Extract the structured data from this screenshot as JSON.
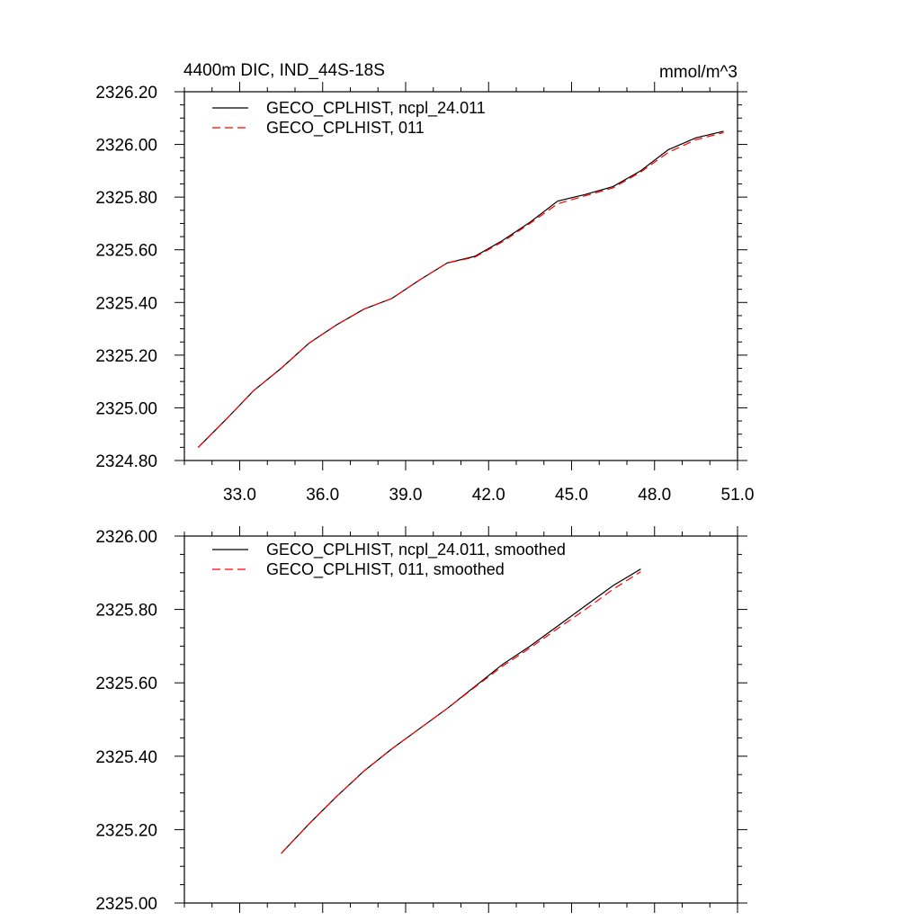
{
  "chart_data": [
    {
      "type": "line",
      "title_left": "4400m DIC, IND_44S-18S",
      "title_right": "mmol/m^3",
      "xlim": [
        31.0,
        51.0
      ],
      "ylim": [
        2324.8,
        2326.2
      ],
      "x_ticks": [
        33.0,
        36.0,
        39.0,
        42.0,
        45.0,
        48.0,
        51.0
      ],
      "x_tick_labels": [
        "33.0",
        "36.0",
        "39.0",
        "42.0",
        "45.0",
        "48.0",
        "51.0"
      ],
      "y_ticks": [
        2324.8,
        2325.0,
        2325.2,
        2325.4,
        2325.6,
        2325.8,
        2326.0,
        2326.2
      ],
      "y_tick_labels": [
        "2324.80",
        "2325.00",
        "2325.20",
        "2325.40",
        "2325.60",
        "2325.80",
        "2326.00",
        "2326.20"
      ],
      "legend_position": "top-left",
      "x": [
        31.5,
        32.5,
        33.5,
        34.5,
        35.5,
        36.5,
        37.5,
        38.5,
        39.5,
        40.5,
        41.5,
        42.5,
        43.5,
        44.5,
        45.5,
        46.5,
        47.5,
        48.5,
        49.5,
        50.5
      ],
      "series": [
        {
          "name": "GECO_CPLHIST, ncpl_24.011",
          "color": "#000000",
          "dash": "solid",
          "values": [
            2324.85,
            2324.955,
            2325.065,
            2325.15,
            2325.245,
            2325.315,
            2325.375,
            2325.415,
            2325.485,
            2325.55,
            2325.575,
            2325.635,
            2325.705,
            2325.785,
            2325.81,
            2325.84,
            2325.9,
            2325.98,
            2326.025,
            2326.05
          ]
        },
        {
          "name": "GECO_CPLHIST, 011",
          "color": "#ff0000",
          "dash": "dashed",
          "values": [
            2324.85,
            2324.955,
            2325.065,
            2325.15,
            2325.245,
            2325.315,
            2325.375,
            2325.415,
            2325.485,
            2325.55,
            2325.572,
            2325.63,
            2325.7,
            2325.775,
            2325.805,
            2325.835,
            2325.895,
            2325.97,
            2326.018,
            2326.045
          ]
        }
      ]
    },
    {
      "type": "line",
      "xlim": [
        31.0,
        51.0
      ],
      "ylim": [
        2325.0,
        2326.0
      ],
      "x_ticks": [
        33.0,
        36.0,
        39.0,
        42.0,
        45.0,
        48.0,
        51.0
      ],
      "y_ticks": [
        2325.0,
        2325.2,
        2325.4,
        2325.6,
        2325.8,
        2326.0
      ],
      "y_tick_labels": [
        "2325.00",
        "2325.20",
        "2325.40",
        "2325.60",
        "2325.80",
        "2326.00"
      ],
      "legend_position": "top-left",
      "x": [
        34.5,
        35.5,
        36.5,
        37.5,
        38.5,
        39.5,
        40.5,
        41.5,
        42.5,
        43.5,
        44.5,
        45.5,
        46.5,
        47.5
      ],
      "series": [
        {
          "name": "GECO_CPLHIST, ncpl_24.011, smoothed",
          "color": "#000000",
          "dash": "solid",
          "values": [
            2325.135,
            2325.215,
            2325.29,
            2325.36,
            2325.42,
            2325.475,
            2325.53,
            2325.59,
            2325.65,
            2325.7,
            2325.755,
            2325.81,
            2325.865,
            2325.91
          ]
        },
        {
          "name": "GECO_CPLHIST, 011, smoothed",
          "color": "#ff0000",
          "dash": "dashed",
          "values": [
            2325.135,
            2325.215,
            2325.29,
            2325.36,
            2325.42,
            2325.475,
            2325.53,
            2325.588,
            2325.645,
            2325.695,
            2325.748,
            2325.8,
            2325.855,
            2325.903
          ]
        }
      ]
    }
  ]
}
